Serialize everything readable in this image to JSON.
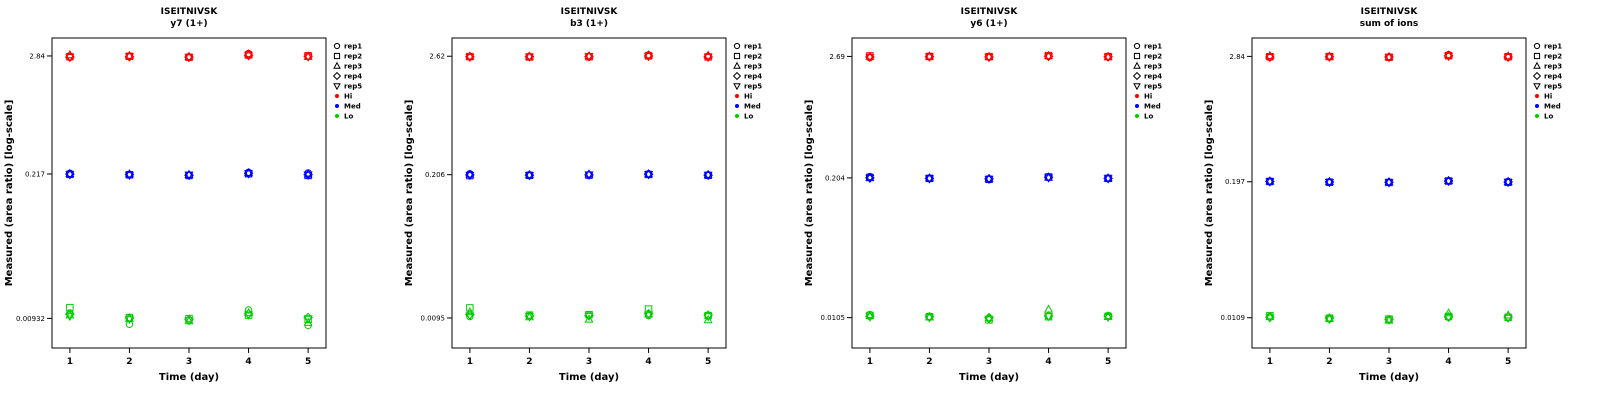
{
  "page": {
    "background": "#FFFFFF"
  },
  "legend": {
    "reps": [
      {
        "label": "rep1",
        "symbol": "circle"
      },
      {
        "label": "rep2",
        "symbol": "square"
      },
      {
        "label": "rep3",
        "symbol": "triangle-up"
      },
      {
        "label": "rep4",
        "symbol": "diamond"
      },
      {
        "label": "rep5",
        "symbol": "triangle-down"
      }
    ],
    "levels": [
      {
        "label": "Hi",
        "color": "#FF0000"
      },
      {
        "label": "Med",
        "color": "#0000FF"
      },
      {
        "label": "Lo",
        "color": "#00CC00"
      }
    ]
  },
  "chart_data": [
    {
      "type": "scatter",
      "title": "ISEITNIVSK",
      "subtitle": "y7 (1+)",
      "xlabel": "Time (day)",
      "ylabel": "Measured (area ratio) [log-scale]",
      "x": [
        1,
        2,
        3,
        4,
        5
      ],
      "x_ticks": [
        "1",
        "2",
        "3",
        "4",
        "5"
      ],
      "xlim": [
        0.7,
        5.3
      ],
      "y_scale": "log",
      "grid": false,
      "legend_position": "right",
      "y_ticks": [
        {
          "value": 2.84,
          "label": "2.84"
        },
        {
          "value": 0.217,
          "label": "0.217"
        },
        {
          "value": 0.00932,
          "label": "0.00932"
        }
      ],
      "series": [
        {
          "name": "Hi",
          "color": "#FF0000",
          "reps": [
            [
              2.75,
              2.8,
              2.78,
              3.0,
              2.83
            ],
            [
              2.8,
              2.82,
              2.76,
              2.9,
              2.85
            ],
            [
              2.9,
              2.85,
              2.8,
              2.95,
              2.8
            ],
            [
              2.78,
              2.79,
              2.77,
              2.88,
              2.82
            ],
            [
              2.76,
              2.81,
              2.75,
              2.86,
              2.79
            ]
          ]
        },
        {
          "name": "Med",
          "color": "#0000FF",
          "reps": [
            [
              0.22,
              0.215,
              0.212,
              0.225,
              0.222
            ],
            [
              0.215,
              0.213,
              0.21,
              0.218,
              0.21
            ],
            [
              0.218,
              0.216,
              0.214,
              0.222,
              0.215
            ],
            [
              0.216,
              0.214,
              0.211,
              0.22,
              0.214
            ],
            [
              0.214,
              0.212,
              0.213,
              0.219,
              0.213
            ]
          ]
        },
        {
          "name": "Lo",
          "color": "#00CC00",
          "reps": [
            [
              0.0105,
              0.0082,
              0.009,
              0.0112,
              0.008
            ],
            [
              0.0118,
              0.0095,
              0.0093,
              0.01,
              0.0091
            ],
            [
              0.01,
              0.0093,
              0.0088,
              0.0105,
              0.0085
            ],
            [
              0.0102,
              0.0094,
              0.0091,
              0.0103,
              0.0095
            ],
            [
              0.0098,
              0.0092,
              0.0089,
              0.0101,
              0.0093
            ]
          ]
        }
      ]
    },
    {
      "type": "scatter",
      "title": "ISEITNIVSK",
      "subtitle": "b3 (1+)",
      "xlabel": "Time (day)",
      "ylabel": "Measured (area ratio) [log-scale]",
      "x": [
        1,
        2,
        3,
        4,
        5
      ],
      "x_ticks": [
        "1",
        "2",
        "3",
        "4",
        "5"
      ],
      "xlim": [
        0.7,
        5.3
      ],
      "y_scale": "log",
      "grid": false,
      "legend_position": "right",
      "y_ticks": [
        {
          "value": 2.62,
          "label": "2.62"
        },
        {
          "value": 0.206,
          "label": "0.206"
        },
        {
          "value": 0.0095,
          "label": "0.0095"
        }
      ],
      "series": [
        {
          "name": "Hi",
          "color": "#FF0000",
          "reps": [
            [
              2.58,
              2.6,
              2.62,
              2.7,
              2.6
            ],
            [
              2.6,
              2.58,
              2.59,
              2.64,
              2.58
            ],
            [
              2.62,
              2.61,
              2.63,
              2.68,
              2.66
            ],
            [
              2.59,
              2.6,
              2.6,
              2.63,
              2.59
            ],
            [
              2.57,
              2.59,
              2.61,
              2.62,
              2.57
            ]
          ]
        },
        {
          "name": "Med",
          "color": "#0000FF",
          "reps": [
            [
              0.21,
              0.204,
              0.206,
              0.21,
              0.205
            ],
            [
              0.202,
              0.203,
              0.204,
              0.207,
              0.203
            ],
            [
              0.207,
              0.205,
              0.208,
              0.209,
              0.206
            ],
            [
              0.205,
              0.204,
              0.205,
              0.208,
              0.204
            ],
            [
              0.204,
              0.203,
              0.206,
              0.207,
              0.204
            ]
          ]
        },
        {
          "name": "Lo",
          "color": "#00CC00",
          "reps": [
            [
              0.0098,
              0.01,
              0.0101,
              0.01,
              0.0099
            ],
            [
              0.0118,
              0.0101,
              0.0102,
              0.0115,
              0.01
            ],
            [
              0.0108,
              0.0097,
              0.0092,
              0.0103,
              0.0091
            ],
            [
              0.0102,
              0.0099,
              0.01,
              0.0104,
              0.0101
            ],
            [
              0.01,
              0.0098,
              0.0099,
              0.0102,
              0.0098
            ]
          ]
        }
      ]
    },
    {
      "type": "scatter",
      "title": "ISEITNIVSK",
      "subtitle": "y6 (1+)",
      "xlabel": "Time (day)",
      "ylabel": "Measured (area ratio) [log-scale]",
      "x": [
        1,
        2,
        3,
        4,
        5
      ],
      "x_ticks": [
        "1",
        "2",
        "3",
        "4",
        "5"
      ],
      "xlim": [
        0.7,
        5.3
      ],
      "y_scale": "log",
      "grid": false,
      "legend_position": "right",
      "y_ticks": [
        {
          "value": 2.69,
          "label": "2.69"
        },
        {
          "value": 0.204,
          "label": "0.204"
        },
        {
          "value": 0.0105,
          "label": "0.0105"
        }
      ],
      "series": [
        {
          "name": "Hi",
          "color": "#FF0000",
          "reps": [
            [
              2.62,
              2.68,
              2.66,
              2.7,
              2.67
            ],
            [
              2.72,
              2.69,
              2.68,
              2.74,
              2.68
            ],
            [
              2.68,
              2.7,
              2.67,
              2.72,
              2.66
            ],
            [
              2.66,
              2.68,
              2.66,
              2.7,
              2.67
            ],
            [
              2.65,
              2.67,
              2.65,
              2.69,
              2.66
            ]
          ]
        },
        {
          "name": "Med",
          "color": "#0000FF",
          "reps": [
            [
              0.21,
              0.201,
              0.2,
              0.207,
              0.203
            ],
            [
              0.206,
              0.202,
              0.198,
              0.208,
              0.202
            ],
            [
              0.205,
              0.203,
              0.201,
              0.206,
              0.203
            ],
            [
              0.204,
              0.202,
              0.2,
              0.207,
              0.202
            ],
            [
              0.203,
              0.201,
              0.199,
              0.205,
              0.201
            ]
          ]
        },
        {
          "name": "Lo",
          "color": "#00CC00",
          "reps": [
            [
              0.0112,
              0.0108,
              0.0103,
              0.0108,
              0.011
            ],
            [
              0.011,
              0.0107,
              0.01,
              0.0107,
              0.0108
            ],
            [
              0.0109,
              0.0106,
              0.0104,
              0.0125,
              0.0107
            ],
            [
              0.0108,
              0.0107,
              0.0105,
              0.0109,
              0.0108
            ],
            [
              0.0107,
              0.0105,
              0.0102,
              0.0108,
              0.0106
            ]
          ]
        }
      ]
    },
    {
      "type": "scatter",
      "title": "ISEITNIVSK",
      "subtitle": "sum of ions",
      "xlabel": "Time (day)",
      "ylabel": "Measured (area ratio) [log-scale]",
      "x": [
        1,
        2,
        3,
        4,
        5
      ],
      "x_ticks": [
        "1",
        "2",
        "3",
        "4",
        "5"
      ],
      "xlim": [
        0.7,
        5.3
      ],
      "y_scale": "log",
      "grid": false,
      "legend_position": "right",
      "y_ticks": [
        {
          "value": 2.84,
          "label": "2.84"
        },
        {
          "value": 0.197,
          "label": "0.197"
        },
        {
          "value": 0.0109,
          "label": "0.0109"
        }
      ],
      "series": [
        {
          "name": "Hi",
          "color": "#FF0000",
          "reps": [
            [
              2.78,
              2.82,
              2.8,
              2.95,
              2.81
            ],
            [
              2.82,
              2.83,
              2.79,
              2.88,
              2.82
            ],
            [
              2.88,
              2.84,
              2.81,
              2.92,
              2.86
            ],
            [
              2.8,
              2.82,
              2.8,
              2.87,
              2.8
            ],
            [
              2.79,
              2.81,
              2.78,
              2.86,
              2.79
            ]
          ]
        },
        {
          "name": "Med",
          "color": "#0000FF",
          "reps": [
            [
              0.2,
              0.196,
              0.195,
              0.202,
              0.198
            ],
            [
              0.198,
              0.195,
              0.194,
              0.2,
              0.195
            ],
            [
              0.199,
              0.197,
              0.196,
              0.201,
              0.197
            ],
            [
              0.198,
              0.196,
              0.195,
              0.2,
              0.196
            ],
            [
              0.197,
              0.195,
              0.194,
              0.199,
              0.195
            ]
          ]
        },
        {
          "name": "Lo",
          "color": "#00CC00",
          "reps": [
            [
              0.0112,
              0.0106,
              0.0104,
              0.011,
              0.0111
            ],
            [
              0.0114,
              0.0108,
              0.0106,
              0.0112,
              0.011
            ],
            [
              0.0111,
              0.0107,
              0.0103,
              0.012,
              0.0115
            ],
            [
              0.011,
              0.0108,
              0.0105,
              0.0111,
              0.011
            ],
            [
              0.0109,
              0.0106,
              0.0104,
              0.011,
              0.0108
            ]
          ]
        }
      ]
    }
  ]
}
